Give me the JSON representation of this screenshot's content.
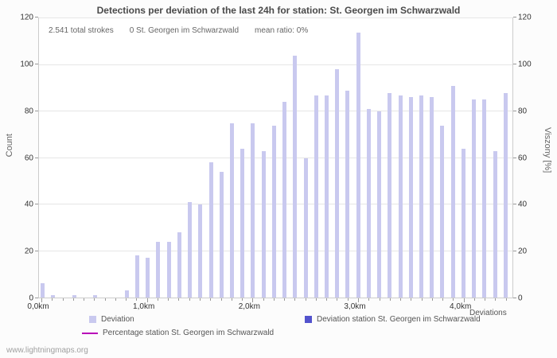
{
  "annotations": {
    "total_strokes": "2.541 total strokes",
    "station_count": "0 St. Georgen im Schwarzwald",
    "mean_ratio": "mean ratio: 0%"
  },
  "legend": [
    {
      "label": "Deviation",
      "color": "#c9c9ef",
      "marker": "square"
    },
    {
      "label": "Deviation station St. Georgen im Schwarzwald",
      "color": "#5353cd",
      "marker": "square"
    },
    {
      "label": "Percentage station St. Georgen im Schwarzwald",
      "color": "#b800b8",
      "marker": "line"
    }
  ],
  "watermark": {
    "text": "www.lightningmaps.org"
  },
  "chart_data": {
    "type": "bar",
    "title": "Detections per deviation of the last 24h for station: St. Georgen im Schwarzwald",
    "xlabel": "Deviations",
    "ylabel_left": "Count",
    "ylabel_right": "Viszony [%]",
    "bar_color": "#c9c9ef",
    "grid": true,
    "legend_position": "bottom",
    "ylim": [
      0,
      120
    ],
    "xlim": [
      0,
      4.5
    ],
    "y_ticks": [
      0,
      20,
      40,
      60,
      80,
      100,
      120
    ],
    "x_tick_positions": [
      0,
      1,
      2,
      3,
      4
    ],
    "x_tick_labels": [
      "0,0km",
      "1,0km",
      "2,0km",
      "3,0km",
      "4,0km"
    ],
    "x": [
      0.0,
      0.1,
      0.2,
      0.3,
      0.4,
      0.5,
      0.6,
      0.7,
      0.8,
      0.9,
      1.0,
      1.1,
      1.2,
      1.3,
      1.4,
      1.5,
      1.6,
      1.7,
      1.8,
      1.9,
      2.0,
      2.1,
      2.2,
      2.3,
      2.4,
      2.5,
      2.6,
      2.7,
      2.8,
      2.9,
      3.0,
      3.1,
      3.2,
      3.3,
      3.4,
      3.5,
      3.6,
      3.7,
      3.8,
      3.9,
      4.0,
      4.1,
      4.2,
      4.3,
      4.4
    ],
    "values": [
      6,
      1,
      0,
      1,
      0,
      1,
      0,
      0,
      3,
      18,
      17,
      24,
      24,
      28,
      41,
      40,
      58,
      54,
      75,
      64,
      75,
      63,
      74,
      84,
      104,
      60,
      87,
      87,
      98,
      89,
      114,
      81,
      80,
      88,
      87,
      86,
      87,
      86,
      74,
      91,
      64,
      85,
      85,
      63,
      88
    ]
  }
}
